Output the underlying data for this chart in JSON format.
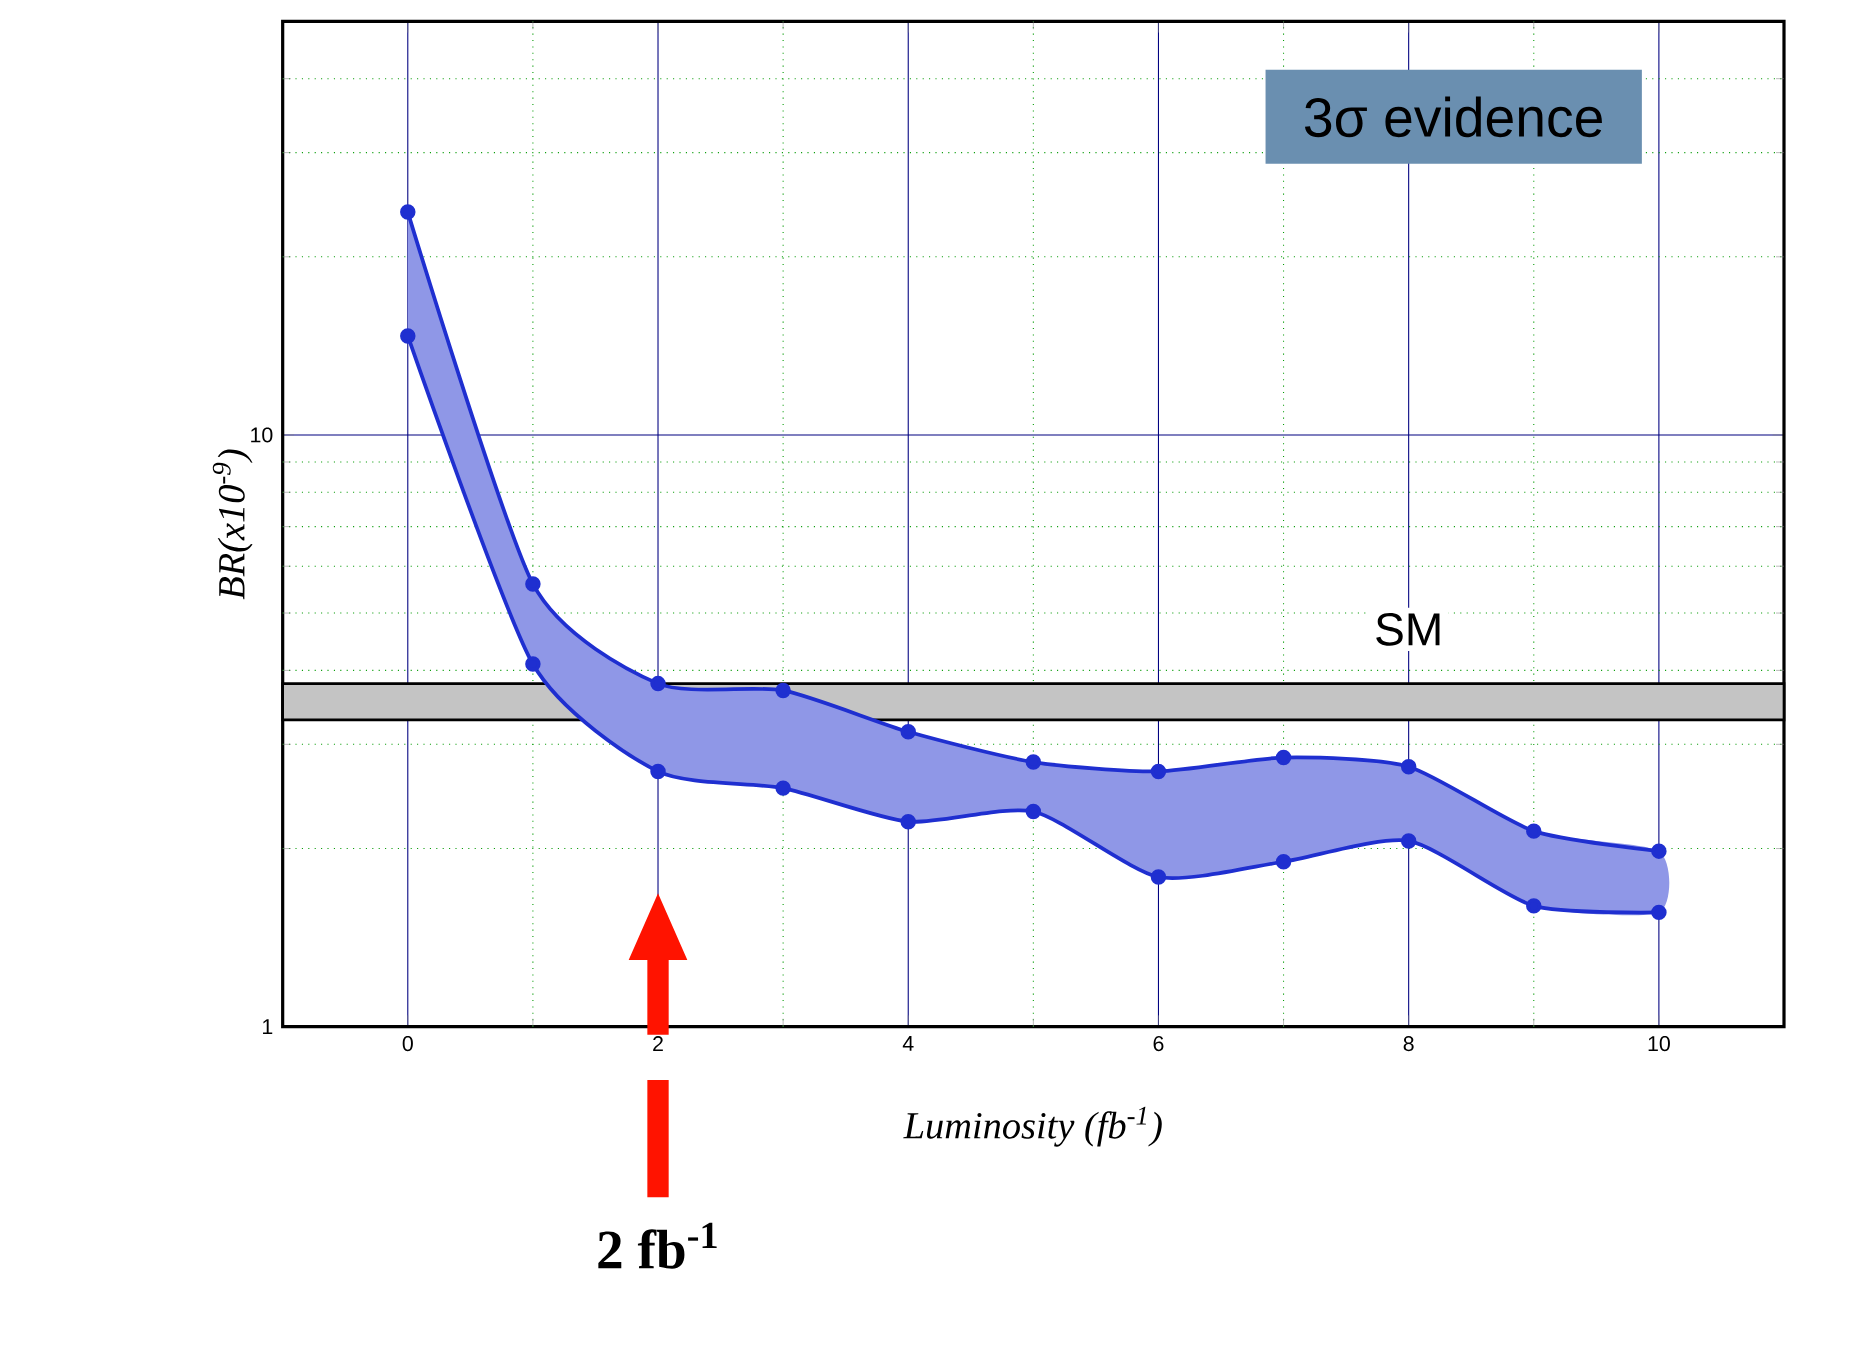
{
  "chart_data": {
    "type": "line",
    "xlabel": "Luminosity (fb$^{-1}$)",
    "ylabel": "BR(x10$^{-9}$)",
    "x": [
      0,
      1,
      2,
      3,
      4,
      5,
      6,
      7,
      8,
      9,
      10
    ],
    "series": [
      {
        "color": "#1f2fd0",
        "values": [
          23.8,
          5.6,
          3.8,
          3.7,
          3.15,
          2.8,
          2.7,
          2.85,
          2.75,
          2.14,
          1.98
        ],
        "lower": [
          14.7,
          4.1,
          2.7,
          2.53,
          2.22,
          2.31,
          1.79,
          1.9,
          2.06,
          1.6,
          1.56
        ],
        "upper": [
          23.8,
          5.6,
          3.8,
          3.7,
          3.15,
          2.8,
          2.7,
          2.85,
          2.75,
          2.14,
          1.98
        ]
      },
      {
        "color": "#1f2fd0",
        "values": [
          14.7,
          4.1,
          2.7,
          2.53,
          2.22,
          2.31,
          1.79,
          1.9,
          2.06,
          1.6,
          1.56
        ]
      }
    ],
    "xlim": [
      -1,
      11
    ],
    "ylim": [
      1,
      50
    ],
    "xticks": [
      0,
      {
        "value": 1,
        "label": null
      },
      2,
      {
        "value": 3,
        "label": null
      },
      4,
      {
        "value": 5,
        "label": null
      },
      6,
      {
        "value": 7,
        "label": null
      },
      8,
      {
        "value": 9,
        "label": null
      },
      10
    ],
    "yticks": [
      1,
      {
        "value": 2,
        "label": null
      },
      {
        "value": 3,
        "label": null
      },
      {
        "value": 4,
        "label": null
      },
      {
        "value": 5,
        "label": null
      },
      {
        "value": 6,
        "label": null
      },
      {
        "value": 7,
        "label": null
      },
      {
        "value": 8,
        "label": null
      },
      {
        "value": 9,
        "label": null
      },
      10,
      {
        "value": 20,
        "label": null
      },
      {
        "value": 30,
        "label": null
      },
      {
        "value": 40,
        "label": null
      }
    ],
    "log": "y",
    "grid": true,
    "marker": "circle",
    "line_style": "solid",
    "bands": [
      {
        "axis": "y",
        "from": 3.3,
        "to": 3.8,
        "label": "SM",
        "color": "#c4c4c4"
      }
    ],
    "annotations": [
      "3σ evidence",
      "2 fb$^{-1}$"
    ]
  }
}
